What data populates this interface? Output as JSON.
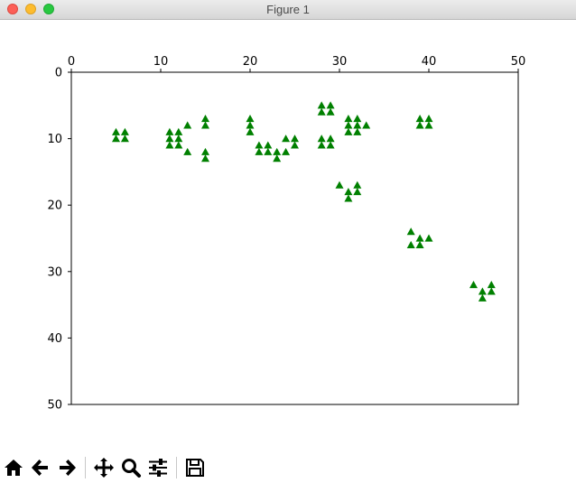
{
  "window": {
    "title": "Figure 1"
  },
  "chart_data": {
    "type": "scatter",
    "marker": "triangle-up",
    "color": "#008000",
    "xlim": [
      0,
      50
    ],
    "ylim": [
      50,
      0
    ],
    "x_axis_position": "top",
    "y_inverted": true,
    "grid": false,
    "xticks": [
      0,
      10,
      20,
      30,
      40,
      50
    ],
    "yticks": [
      0,
      10,
      20,
      30,
      40,
      50
    ],
    "points": [
      [
        5,
        9
      ],
      [
        6,
        9
      ],
      [
        5,
        10
      ],
      [
        6,
        10
      ],
      [
        11,
        9
      ],
      [
        12,
        9
      ],
      [
        11,
        10
      ],
      [
        12,
        10
      ],
      [
        11,
        11
      ],
      [
        12,
        11
      ],
      [
        13,
        8
      ],
      [
        13,
        12
      ],
      [
        15,
        7
      ],
      [
        15,
        8
      ],
      [
        15,
        12
      ],
      [
        15,
        13
      ],
      [
        20,
        7
      ],
      [
        20,
        8
      ],
      [
        20,
        9
      ],
      [
        21,
        11
      ],
      [
        22,
        11
      ],
      [
        21,
        12
      ],
      [
        22,
        12
      ],
      [
        23,
        12
      ],
      [
        23,
        13
      ],
      [
        24,
        10
      ],
      [
        25,
        10
      ],
      [
        24,
        12
      ],
      [
        25,
        11
      ],
      [
        28,
        5
      ],
      [
        29,
        5
      ],
      [
        28,
        6
      ],
      [
        29,
        6
      ],
      [
        28,
        10
      ],
      [
        29,
        10
      ],
      [
        28,
        11
      ],
      [
        29,
        11
      ],
      [
        31,
        7
      ],
      [
        32,
        7
      ],
      [
        31,
        8
      ],
      [
        32,
        8
      ],
      [
        33,
        8
      ],
      [
        31,
        9
      ],
      [
        32,
        9
      ],
      [
        30,
        17
      ],
      [
        31,
        18
      ],
      [
        32,
        17
      ],
      [
        32,
        18
      ],
      [
        31,
        19
      ],
      [
        39,
        7
      ],
      [
        40,
        7
      ],
      [
        39,
        8
      ],
      [
        40,
        8
      ],
      [
        38,
        24
      ],
      [
        39,
        25
      ],
      [
        40,
        25
      ],
      [
        38,
        26
      ],
      [
        39,
        26
      ],
      [
        45,
        32
      ],
      [
        47,
        32
      ],
      [
        46,
        33
      ],
      [
        47,
        33
      ],
      [
        46,
        34
      ]
    ]
  },
  "toolbar": {
    "buttons": [
      {
        "name": "home-icon",
        "icon": "home"
      },
      {
        "name": "back-arrow-icon",
        "icon": "arrow-left"
      },
      {
        "name": "forward-arrow-icon",
        "icon": "arrow-right"
      },
      {
        "name": "pan-icon",
        "icon": "move"
      },
      {
        "name": "zoom-icon",
        "icon": "magnifier"
      },
      {
        "name": "subplots-config-icon",
        "icon": "sliders"
      },
      {
        "name": "save-icon",
        "icon": "floppy-disk"
      }
    ]
  }
}
